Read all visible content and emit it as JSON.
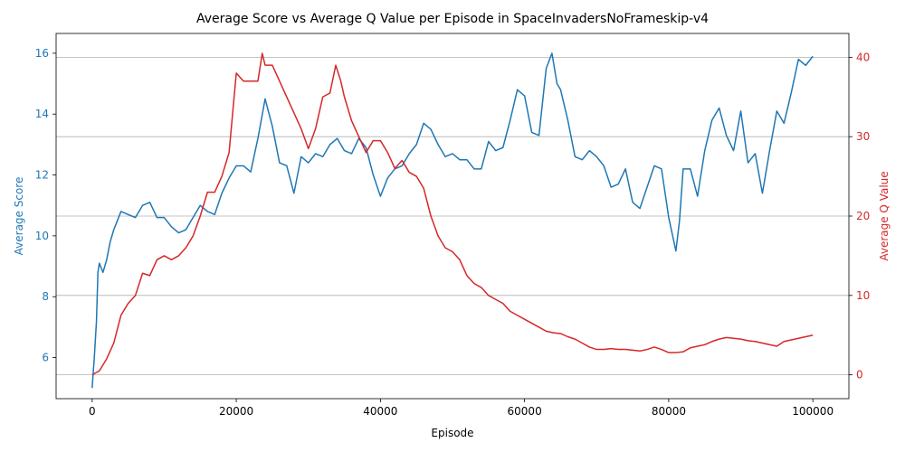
{
  "chart_data": {
    "type": "line",
    "title": "Average Score vs Average Q Value per Episode in SpaceInvadersNoFrameskip-v4",
    "xlabel": "Episode",
    "ylabel_left": "Average Score",
    "ylabel_right": "Average Q Value",
    "xlim": [
      -5000,
      105000
    ],
    "ylim_left": [
      4.65,
      16.65
    ],
    "ylim_right": [
      -3,
      43
    ],
    "x_ticks": [
      0,
      20000,
      40000,
      60000,
      80000,
      100000
    ],
    "x_tick_labels": [
      "0",
      "20000",
      "40000",
      "60000",
      "80000",
      "100000"
    ],
    "y_left_ticks": [
      6,
      8,
      10,
      12,
      14,
      16
    ],
    "y_left_tick_labels": [
      "6",
      "8",
      "10",
      "12",
      "14",
      "16"
    ],
    "y_right_ticks": [
      0,
      10,
      20,
      30,
      40
    ],
    "y_right_tick_labels": [
      "0",
      "10",
      "20",
      "30",
      "40"
    ],
    "grid": "horizontal lines at right-axis ticks",
    "colors": {
      "score": "#1f77b4",
      "q": "#d62728",
      "grid": "#b0b0b0",
      "axis": "#000000"
    },
    "series": [
      {
        "axis": "left",
        "points": [
          [
            0,
            5.0
          ],
          [
            300,
            6.0
          ],
          [
            600,
            7.2
          ],
          [
            800,
            8.8
          ],
          [
            1000,
            9.1
          ],
          [
            1500,
            8.8
          ],
          [
            2000,
            9.2
          ],
          [
            2500,
            9.8
          ],
          [
            3000,
            10.2
          ],
          [
            3500,
            10.5
          ],
          [
            4000,
            10.8
          ],
          [
            5000,
            10.7
          ],
          [
            6000,
            10.6
          ],
          [
            7000,
            11.0
          ],
          [
            8000,
            11.1
          ],
          [
            9000,
            10.6
          ],
          [
            10000,
            10.6
          ],
          [
            11000,
            10.3
          ],
          [
            12000,
            10.1
          ],
          [
            13000,
            10.2
          ],
          [
            14000,
            10.6
          ],
          [
            15000,
            11.0
          ],
          [
            16000,
            10.8
          ],
          [
            17000,
            10.7
          ],
          [
            18000,
            11.4
          ],
          [
            19000,
            11.9
          ],
          [
            20000,
            12.3
          ],
          [
            21000,
            12.3
          ],
          [
            22000,
            12.1
          ],
          [
            23000,
            13.2
          ],
          [
            24000,
            14.5
          ],
          [
            25000,
            13.6
          ],
          [
            26000,
            12.4
          ],
          [
            27000,
            12.3
          ],
          [
            28000,
            11.4
          ],
          [
            29000,
            12.6
          ],
          [
            30000,
            12.4
          ],
          [
            31000,
            12.7
          ],
          [
            32000,
            12.6
          ],
          [
            33000,
            13.0
          ],
          [
            34000,
            13.2
          ],
          [
            35000,
            12.8
          ],
          [
            36000,
            12.7
          ],
          [
            37000,
            13.2
          ],
          [
            38000,
            12.9
          ],
          [
            39000,
            12.0
          ],
          [
            40000,
            11.3
          ],
          [
            41000,
            11.9
          ],
          [
            42000,
            12.2
          ],
          [
            43000,
            12.3
          ],
          [
            44000,
            12.7
          ],
          [
            45000,
            13.0
          ],
          [
            46000,
            13.7
          ],
          [
            47000,
            13.5
          ],
          [
            48000,
            13.0
          ],
          [
            49000,
            12.6
          ],
          [
            50000,
            12.7
          ],
          [
            51000,
            12.5
          ],
          [
            52000,
            12.5
          ],
          [
            53000,
            12.2
          ],
          [
            54000,
            12.2
          ],
          [
            55000,
            13.1
          ],
          [
            56000,
            12.8
          ],
          [
            57000,
            12.9
          ],
          [
            58000,
            13.8
          ],
          [
            59000,
            14.8
          ],
          [
            60000,
            14.6
          ],
          [
            61000,
            13.4
          ],
          [
            62000,
            13.3
          ],
          [
            63000,
            15.5
          ],
          [
            63800,
            16.0
          ],
          [
            64500,
            15.0
          ],
          [
            65000,
            14.8
          ],
          [
            66000,
            13.8
          ],
          [
            67000,
            12.6
          ],
          [
            68000,
            12.5
          ],
          [
            69000,
            12.8
          ],
          [
            70000,
            12.6
          ],
          [
            71000,
            12.3
          ],
          [
            72000,
            11.6
          ],
          [
            73000,
            11.7
          ],
          [
            74000,
            12.2
          ],
          [
            75000,
            11.1
          ],
          [
            76000,
            10.9
          ],
          [
            77000,
            11.6
          ],
          [
            78000,
            12.3
          ],
          [
            79000,
            12.2
          ],
          [
            80000,
            10.6
          ],
          [
            81000,
            9.5
          ],
          [
            81500,
            10.5
          ],
          [
            82000,
            12.2
          ],
          [
            83000,
            12.2
          ],
          [
            84000,
            11.3
          ],
          [
            85000,
            12.8
          ],
          [
            86000,
            13.8
          ],
          [
            87000,
            14.2
          ],
          [
            88000,
            13.3
          ],
          [
            89000,
            12.8
          ],
          [
            90000,
            14.1
          ],
          [
            91000,
            12.4
          ],
          [
            92000,
            12.7
          ],
          [
            93000,
            11.4
          ],
          [
            94000,
            12.8
          ],
          [
            95000,
            14.1
          ],
          [
            96000,
            13.7
          ],
          [
            97000,
            14.7
          ],
          [
            98000,
            15.8
          ],
          [
            99000,
            15.6
          ],
          [
            100000,
            15.9
          ]
        ]
      },
      {
        "axis": "right",
        "points": [
          [
            0,
            0.0
          ],
          [
            1000,
            0.5
          ],
          [
            2000,
            2.0
          ],
          [
            3000,
            4.0
          ],
          [
            4000,
            7.5
          ],
          [
            5000,
            9.0
          ],
          [
            6000,
            10.0
          ],
          [
            7000,
            12.8
          ],
          [
            8000,
            12.5
          ],
          [
            9000,
            14.5
          ],
          [
            10000,
            15.0
          ],
          [
            11000,
            14.5
          ],
          [
            12000,
            15.0
          ],
          [
            13000,
            16.0
          ],
          [
            14000,
            17.5
          ],
          [
            15000,
            20.0
          ],
          [
            16000,
            23.0
          ],
          [
            17000,
            23.0
          ],
          [
            18000,
            25.0
          ],
          [
            19000,
            28.0
          ],
          [
            20000,
            38.0
          ],
          [
            21000,
            37.0
          ],
          [
            22000,
            37.0
          ],
          [
            23000,
            37.0
          ],
          [
            23600,
            40.5
          ],
          [
            24000,
            39.0
          ],
          [
            25000,
            39.0
          ],
          [
            26000,
            37.0
          ],
          [
            27000,
            35.0
          ],
          [
            28000,
            33.0
          ],
          [
            29000,
            31.0
          ],
          [
            30000,
            28.5
          ],
          [
            31000,
            31.0
          ],
          [
            32000,
            35.0
          ],
          [
            33000,
            35.5
          ],
          [
            33800,
            39.0
          ],
          [
            34500,
            37.0
          ],
          [
            35000,
            35.0
          ],
          [
            36000,
            32.0
          ],
          [
            37000,
            30.0
          ],
          [
            38000,
            28.0
          ],
          [
            39000,
            29.5
          ],
          [
            40000,
            29.5
          ],
          [
            41000,
            28.0
          ],
          [
            42000,
            26.0
          ],
          [
            43000,
            27.0
          ],
          [
            44000,
            25.5
          ],
          [
            45000,
            25.0
          ],
          [
            46000,
            23.5
          ],
          [
            47000,
            20.0
          ],
          [
            48000,
            17.5
          ],
          [
            49000,
            16.0
          ],
          [
            50000,
            15.5
          ],
          [
            51000,
            14.5
          ],
          [
            52000,
            12.5
          ],
          [
            53000,
            11.5
          ],
          [
            54000,
            11.0
          ],
          [
            55000,
            10.0
          ],
          [
            56000,
            9.5
          ],
          [
            57000,
            9.0
          ],
          [
            58000,
            8.0
          ],
          [
            59000,
            7.5
          ],
          [
            60000,
            7.0
          ],
          [
            61000,
            6.5
          ],
          [
            62000,
            6.0
          ],
          [
            63000,
            5.5
          ],
          [
            64000,
            5.3
          ],
          [
            65000,
            5.2
          ],
          [
            66000,
            4.8
          ],
          [
            67000,
            4.5
          ],
          [
            68000,
            4.0
          ],
          [
            69000,
            3.5
          ],
          [
            70000,
            3.2
          ],
          [
            71000,
            3.2
          ],
          [
            72000,
            3.3
          ],
          [
            73000,
            3.2
          ],
          [
            74000,
            3.2
          ],
          [
            75000,
            3.1
          ],
          [
            76000,
            3.0
          ],
          [
            77000,
            3.2
          ],
          [
            78000,
            3.5
          ],
          [
            79000,
            3.2
          ],
          [
            80000,
            2.8
          ],
          [
            81000,
            2.8
          ],
          [
            82000,
            2.9
          ],
          [
            83000,
            3.4
          ],
          [
            84000,
            3.6
          ],
          [
            85000,
            3.8
          ],
          [
            86000,
            4.2
          ],
          [
            87000,
            4.5
          ],
          [
            88000,
            4.7
          ],
          [
            89000,
            4.6
          ],
          [
            90000,
            4.5
          ],
          [
            91000,
            4.3
          ],
          [
            92000,
            4.2
          ],
          [
            93000,
            4.0
          ],
          [
            94000,
            3.8
          ],
          [
            95000,
            3.6
          ],
          [
            96000,
            4.2
          ],
          [
            97000,
            4.4
          ],
          [
            98000,
            4.6
          ],
          [
            99000,
            4.8
          ],
          [
            100000,
            5.0
          ]
        ]
      }
    ]
  }
}
